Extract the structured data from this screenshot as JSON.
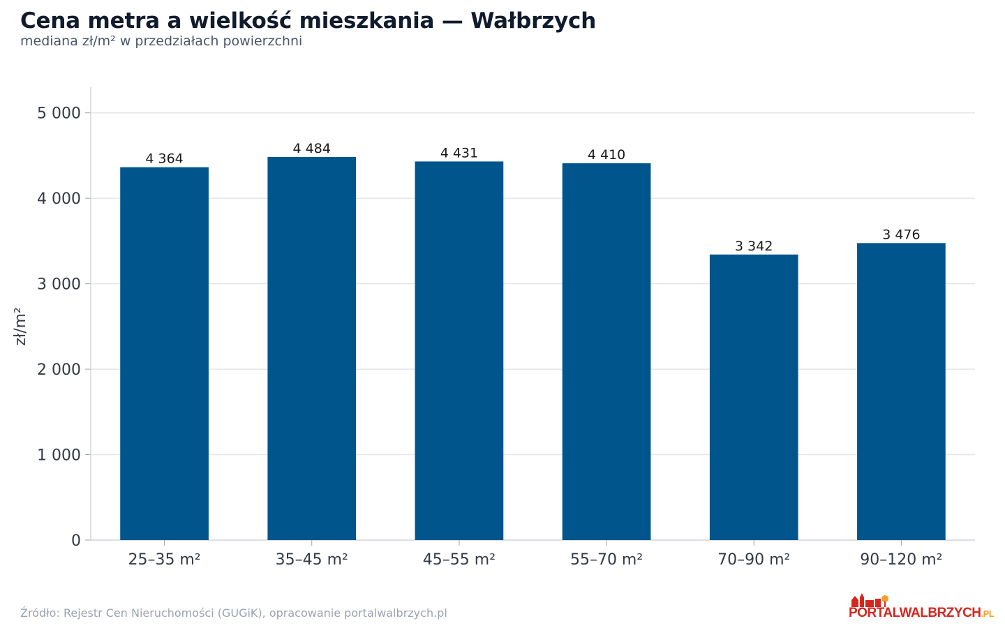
{
  "title": "Cena metra a wielkość mieszkania — Wałbrzych",
  "subtitle": "mediana zł/m² w przedziałach powierzchni",
  "footer": "Źródło: Rejestr Cen Nieruchomości (GUGiK), opracowanie portalwalbrzych.pl",
  "logo": {
    "part1": "PORTAL",
    "part2": "WALBRZYCH",
    "part3": ".PL"
  },
  "colors": {
    "bar": "#00558d",
    "grid": "#e3e6ea",
    "axis": "#d0d4d9",
    "text": "#333a45"
  },
  "chart_data": {
    "type": "bar",
    "categories": [
      "25–35 m²",
      "35–45 m²",
      "45–55 m²",
      "55–70 m²",
      "70–90 m²",
      "90–120 m²"
    ],
    "values": [
      4364,
      4484,
      4431,
      4410,
      3342,
      3476
    ],
    "value_labels": [
      "4 364",
      "4 484",
      "4 431",
      "4 410",
      "3 342",
      "3 476"
    ],
    "ylabel": "zł/m²",
    "ylim": [
      0,
      5300
    ],
    "yticks": [
      0,
      1000,
      2000,
      3000,
      4000,
      5000
    ],
    "ytick_labels": [
      "0",
      "1 000",
      "2 000",
      "3 000",
      "4 000",
      "5 000"
    ],
    "grid": true
  }
}
